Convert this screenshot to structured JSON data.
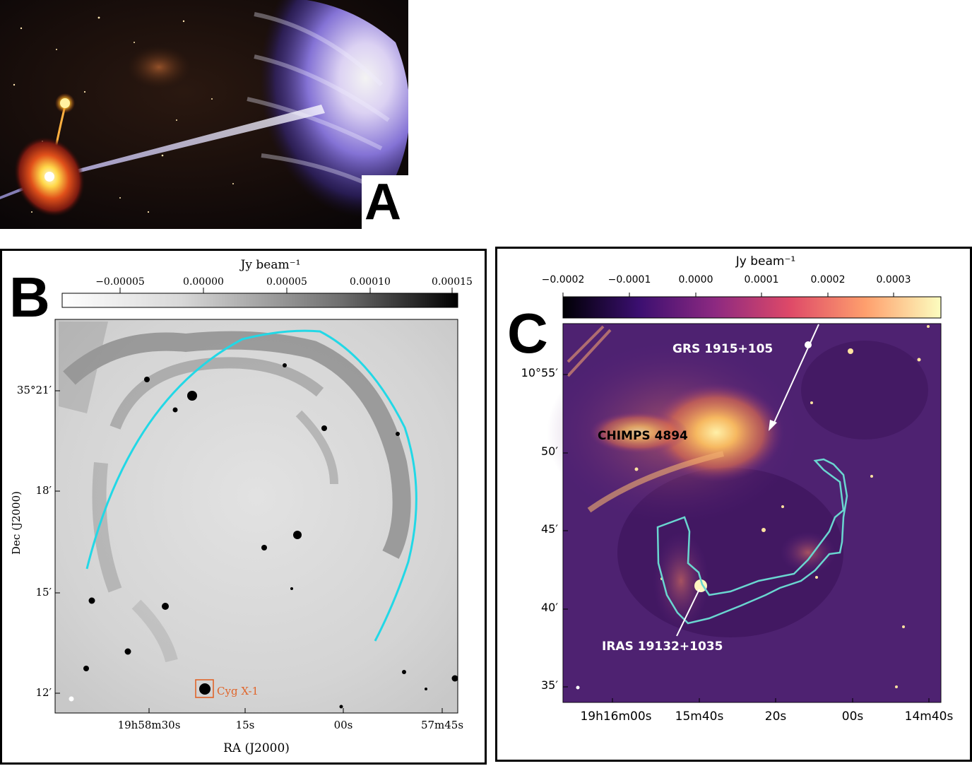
{
  "panel_a": {
    "letter": "A"
  },
  "panel_b": {
    "letter": "B",
    "colorbar_label": "Jy beam⁻¹",
    "colorbar_ticks": [
      "−0.00005",
      "0.00000",
      "0.00005",
      "0.00010",
      "0.00015"
    ],
    "ylabel": "Dec (J2000)",
    "xlabel": "RA (J2000)",
    "yticks": [
      "35°21′",
      "18′",
      "15′",
      "12′"
    ],
    "xticks": [
      "19h58m30s",
      "15s",
      "00s",
      "57m45s"
    ],
    "source_label": "Cyg X-1",
    "colors": {
      "arc": "#22d8e6",
      "source_box": "#e0652a"
    }
  },
  "panel_c": {
    "letter": "C",
    "colorbar_label": "Jy beam⁻¹",
    "colorbar_ticks": [
      "−0.0002",
      "−0.0001",
      "0.0000",
      "0.0001",
      "0.0002",
      "0.0003"
    ],
    "yticks": [
      "10°55′",
      "50′",
      "45′",
      "40′",
      "35′"
    ],
    "xticks": [
      "19h16m00s",
      "15m40s",
      "20s",
      "00s",
      "14m40s"
    ],
    "labels": {
      "grs": "GRS 1915+105",
      "chimps": "CHIMPS 4894",
      "iras": "IRAS 19132+1035"
    },
    "colors": {
      "contour": "#6ad6d0"
    }
  }
}
